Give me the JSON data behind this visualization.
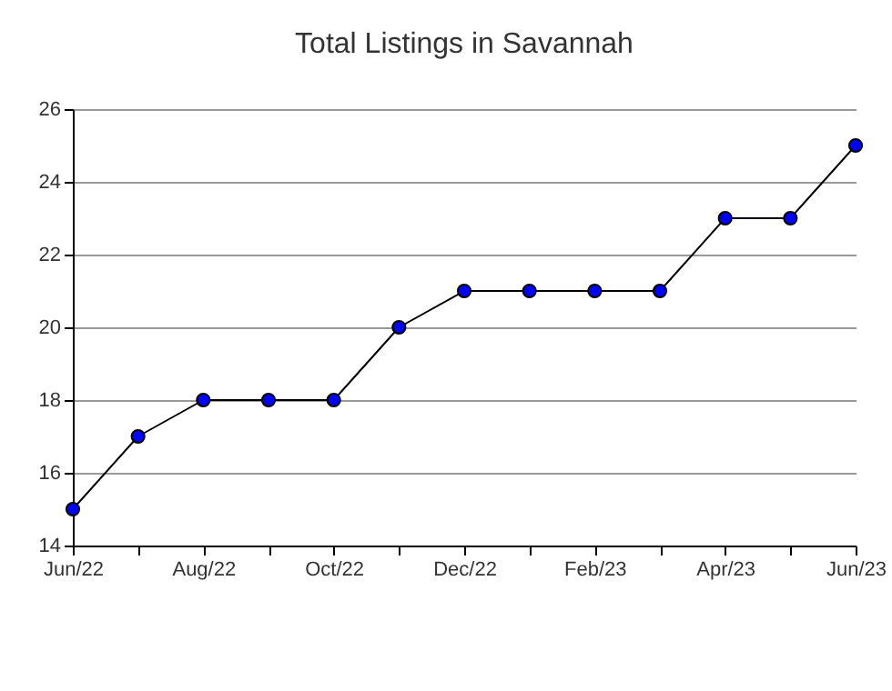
{
  "chart_data": {
    "type": "line",
    "title": "Total Listings in Savannah",
    "categories": [
      "Jun/22",
      null,
      "Aug/22",
      null,
      "Oct/22",
      null,
      "Dec/22",
      null,
      "Feb/23",
      null,
      "Apr/23",
      null,
      "Jun/23"
    ],
    "series": [
      {
        "color": "#0000ff",
        "values": [
          15,
          17,
          18,
          18,
          18,
          20,
          21,
          21,
          21,
          21,
          23,
          23,
          25
        ]
      }
    ],
    "ylim": [
      14,
      26
    ],
    "yticks": [
      14,
      16,
      18,
      20,
      22,
      24,
      26
    ],
    "grid": "y",
    "marker": "circle",
    "line_style": "solid"
  }
}
